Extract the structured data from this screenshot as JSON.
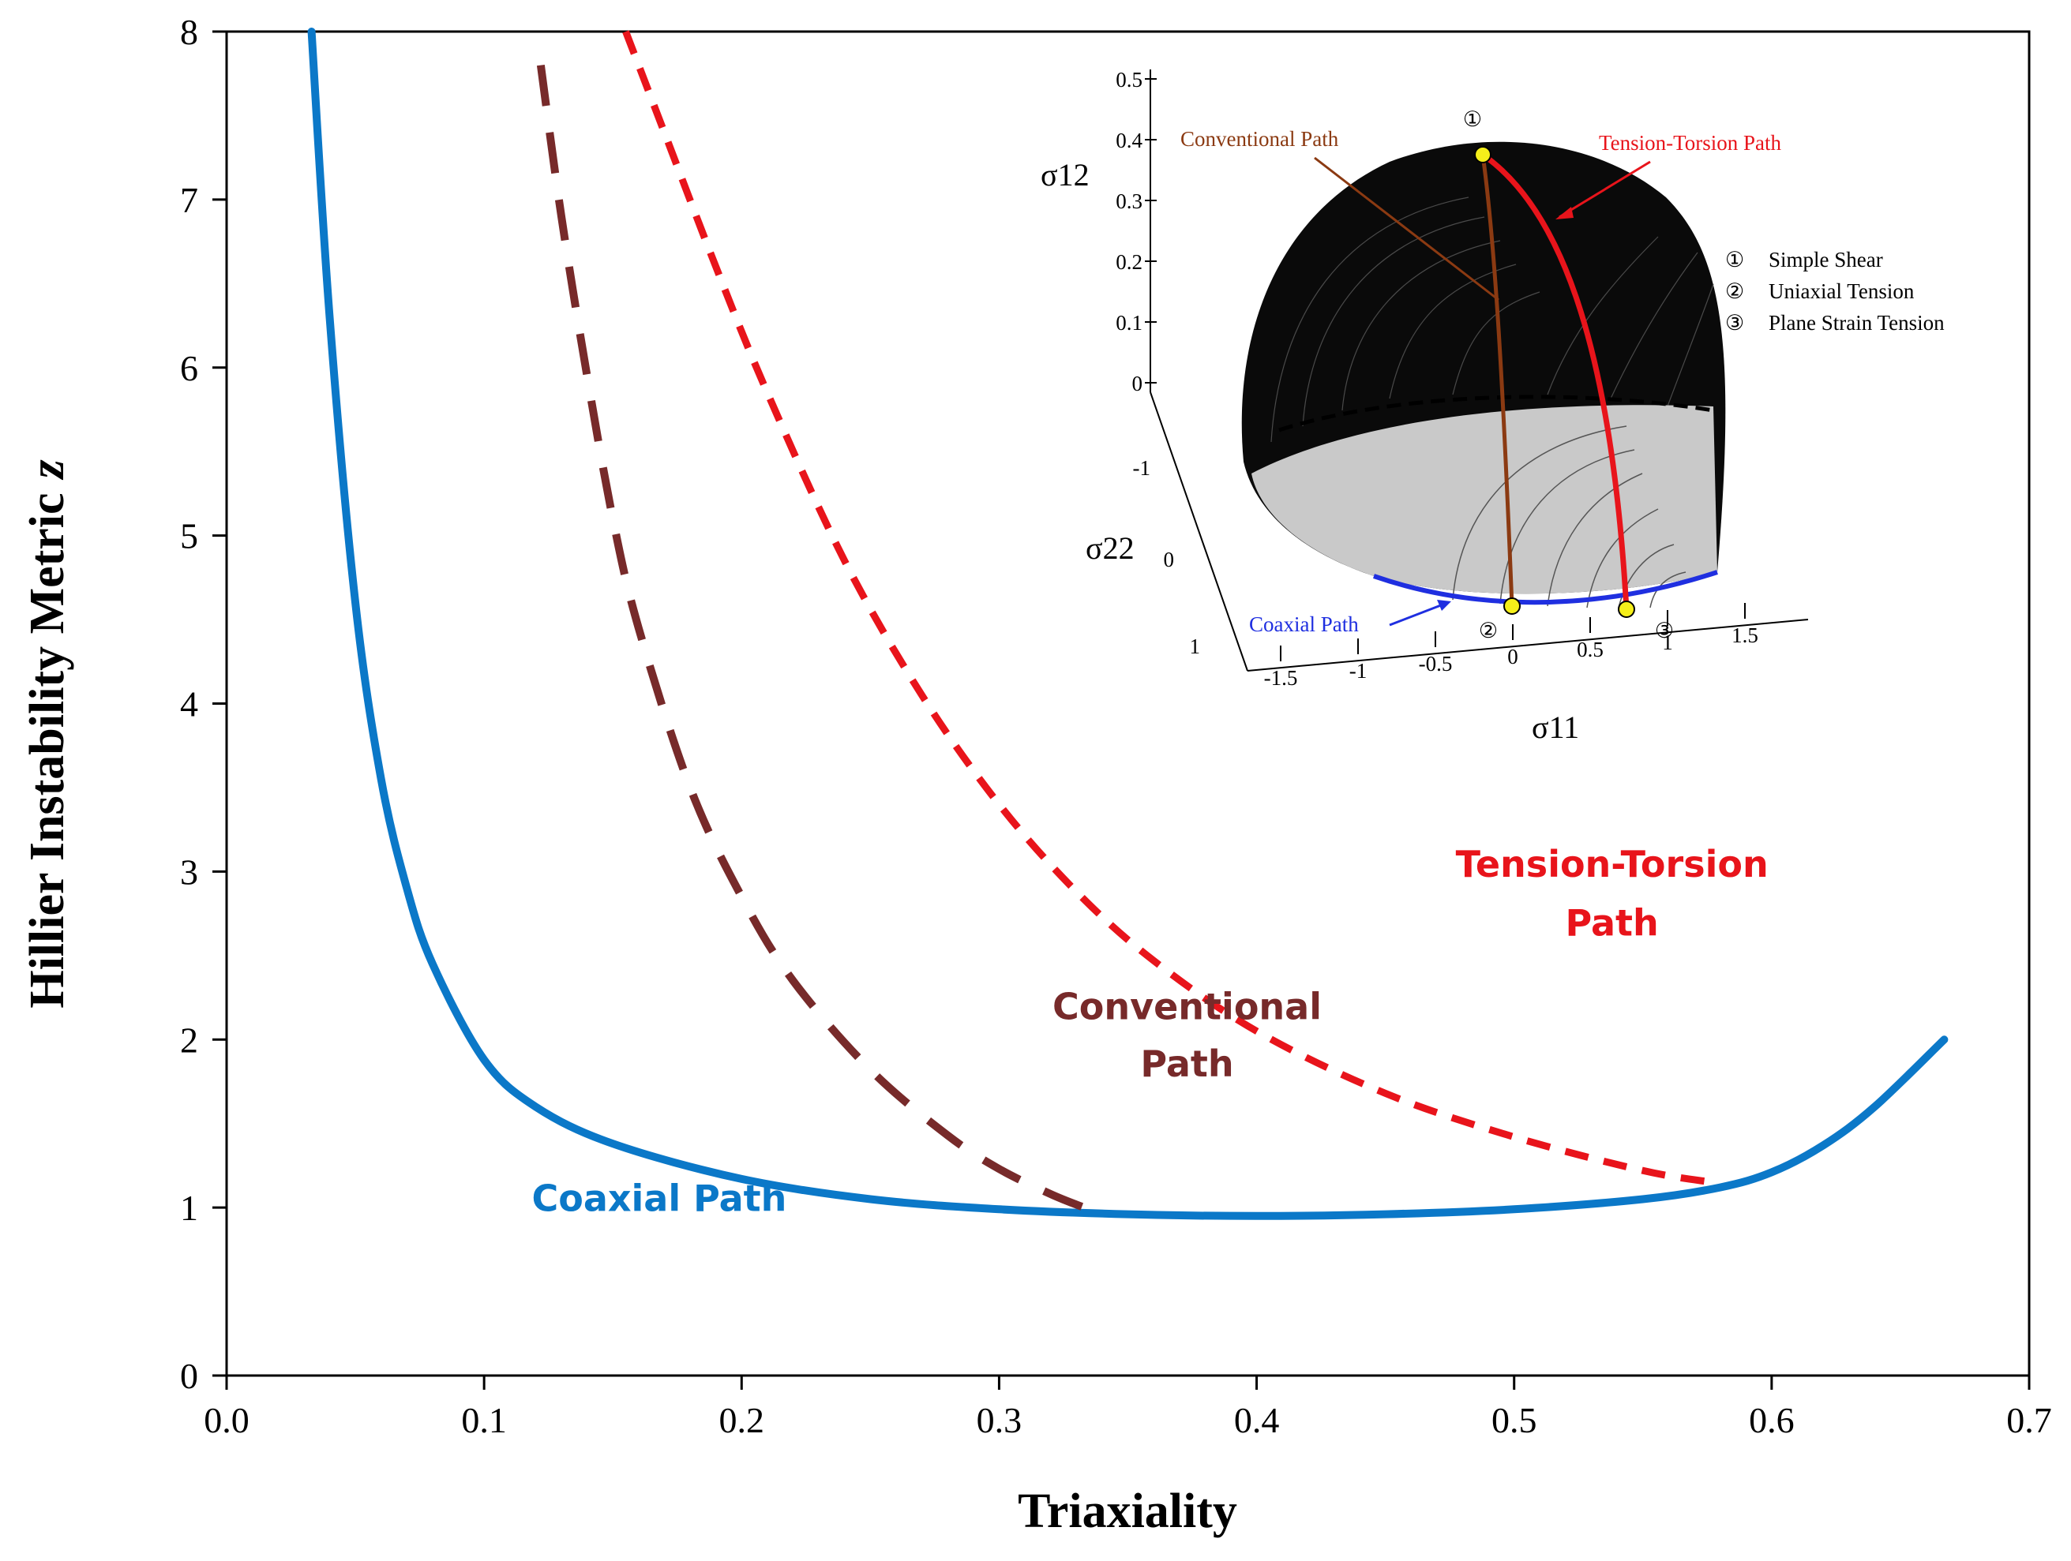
{
  "chart_data": {
    "type": "line",
    "title": "",
    "xlabel": "Triaxiality",
    "ylabel": "Hillier Instability Metric",
    "ylabel_symbol": "z",
    "xlim": [
      0.0,
      0.7
    ],
    "ylim": [
      0,
      8
    ],
    "x_ticks": [
      "0.0",
      "0.1",
      "0.2",
      "0.3",
      "0.4",
      "0.5",
      "0.6",
      "0.7"
    ],
    "y_ticks": [
      "0",
      "1",
      "2",
      "3",
      "4",
      "5",
      "6",
      "7",
      "8"
    ],
    "grid": false,
    "series": [
      {
        "name": "Coaxial Path",
        "color": "#0b78c8",
        "style": "solid",
        "label_lines": [
          "Coaxial Path"
        ],
        "x": [
          0.033,
          0.04,
          0.05,
          0.06,
          0.07,
          0.08,
          0.1,
          0.12,
          0.15,
          0.2,
          0.25,
          0.3,
          0.35,
          0.4,
          0.45,
          0.5,
          0.55,
          0.58,
          0.6,
          0.62,
          0.64,
          0.667
        ],
        "y": [
          8.0,
          6.3,
          4.6,
          3.55,
          2.9,
          2.45,
          1.88,
          1.6,
          1.38,
          1.17,
          1.05,
          0.99,
          0.96,
          0.95,
          0.96,
          0.99,
          1.05,
          1.12,
          1.21,
          1.37,
          1.6,
          2.0
        ]
      },
      {
        "name": "Conventional Path",
        "color": "#772a2a",
        "style": "dashed",
        "label_lines": [
          "Conventional",
          "Path"
        ],
        "x": [
          0.122,
          0.13,
          0.14,
          0.15,
          0.16,
          0.18,
          0.2,
          0.22,
          0.25,
          0.28,
          0.3,
          0.32,
          0.333
        ],
        "y": [
          7.8,
          6.9,
          5.95,
          5.1,
          4.45,
          3.5,
          2.85,
          2.35,
          1.82,
          1.43,
          1.23,
          1.08,
          1.0
        ]
      },
      {
        "name": "Tension-Torsion Path",
        "color": "#e8141b",
        "style": "dashed",
        "label_lines": [
          "Tension-Torsion",
          "Path"
        ],
        "x": [
          0.155,
          0.17,
          0.19,
          0.21,
          0.24,
          0.27,
          0.3,
          0.33,
          0.36,
          0.4,
          0.45,
          0.5,
          0.55,
          0.577
        ],
        "y": [
          8.0,
          7.4,
          6.6,
          5.85,
          4.85,
          4.05,
          3.4,
          2.88,
          2.47,
          2.05,
          1.68,
          1.42,
          1.22,
          1.15
        ]
      }
    ]
  },
  "inset": {
    "axis_sigma12": "σ12",
    "axis_sigma22": "σ22",
    "axis_sigma11": "σ11",
    "sigma12_ticks": [
      "0.5",
      "0.4",
      "0.3",
      "0.2",
      "0.1",
      "0"
    ],
    "sigma22_ticks": [
      "-1",
      "0",
      "1"
    ],
    "sigma11_ticks": [
      "-1.5",
      "-1",
      "-0.5",
      "0",
      "0.5",
      "1",
      "1.5"
    ],
    "labels": {
      "conventional": "Conventional Path",
      "tension_torsion": "Tension-Torsion Path",
      "coaxial": "Coaxial Path"
    },
    "legend": [
      {
        "marker": "①",
        "text": "Simple Shear"
      },
      {
        "marker": "②",
        "text": "Uniaxial Tension"
      },
      {
        "marker": "③",
        "text": "Plane Strain Tension"
      }
    ],
    "point_markers": [
      "①",
      "②",
      "③"
    ],
    "colors": {
      "conventional": "#8b3a12",
      "tension_torsion": "#e8141b",
      "coaxial": "#1f2fe0",
      "points": "#f5ef1a"
    }
  }
}
